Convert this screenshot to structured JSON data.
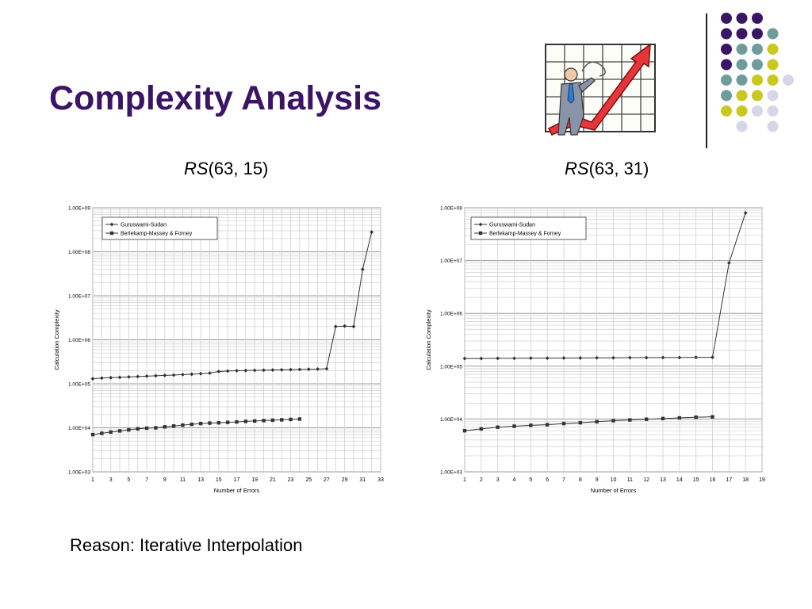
{
  "slide": {
    "title": "Complexity Analysis",
    "footer": "Reason: Iterative Interpolation"
  },
  "colors": {
    "title": "#3b1466",
    "dot_purple": "#3b1466",
    "dot_teal": "#6e9c9c",
    "dot_yellow": "#c8c81e",
    "dot_lavender": "#d6d6e8"
  },
  "decor": {
    "clipart": "businessman-rising-chart-icon"
  },
  "chart_data": [
    {
      "type": "line",
      "label_italic": "RS",
      "label_rest": "(63, 15)",
      "xlabel": "Number of Errors",
      "ylabel": "Calculation Complexity",
      "yscale": "log",
      "ylim": [
        1000,
        1000000000
      ],
      "xlim": [
        1,
        33
      ],
      "xticks": [
        1,
        3,
        5,
        7,
        9,
        11,
        13,
        15,
        17,
        19,
        21,
        23,
        25,
        27,
        29,
        31,
        33
      ],
      "yticks": [
        1000,
        10000,
        100000,
        1000000,
        10000000,
        100000000,
        1000000000
      ],
      "ytick_labels": [
        "1.00E+03",
        "1.00E+04",
        "1.00E+05",
        "1.00E+06",
        "1.00E+07",
        "1.00E+08",
        "1.00E+09"
      ],
      "grid": true,
      "legend_position": "top-left",
      "series": [
        {
          "name": "Guruswami-Sudan",
          "marker": "diamond",
          "x": [
            1,
            2,
            3,
            4,
            5,
            6,
            7,
            8,
            9,
            10,
            11,
            12,
            13,
            14,
            15,
            16,
            17,
            18,
            19,
            20,
            21,
            22,
            23,
            24,
            25,
            26,
            27,
            28,
            29,
            30,
            31,
            32
          ],
          "y": [
            130000,
            135000,
            138000,
            140000,
            143000,
            146000,
            149000,
            152000,
            155000,
            158000,
            162000,
            165000,
            170000,
            175000,
            190000,
            195000,
            198000,
            200000,
            202000,
            204000,
            206000,
            208000,
            210000,
            212000,
            214000,
            216000,
            220000,
            2000000,
            2050000,
            2000000,
            40000000,
            280000000
          ]
        },
        {
          "name": "Berlekamp-Massey & Forney",
          "marker": "square",
          "x": [
            1,
            2,
            3,
            4,
            5,
            6,
            7,
            8,
            9,
            10,
            11,
            12,
            13,
            14,
            15,
            16,
            17,
            18,
            19,
            20,
            21,
            22,
            23,
            24
          ],
          "y": [
            7000,
            7500,
            8000,
            8500,
            9000,
            9500,
            9800,
            10000,
            10500,
            11000,
            11500,
            12000,
            12500,
            12800,
            13000,
            13300,
            13600,
            14000,
            14300,
            14600,
            14900,
            15200,
            15500,
            15800
          ]
        }
      ]
    },
    {
      "type": "line",
      "label_italic": "RS",
      "label_rest": "(63, 31)",
      "xlabel": "Number of Errors",
      "ylabel": "Calculation Complexity",
      "yscale": "log",
      "ylim": [
        1000,
        100000000
      ],
      "xlim": [
        1,
        19
      ],
      "xticks": [
        1,
        2,
        3,
        4,
        5,
        6,
        7,
        8,
        9,
        10,
        11,
        12,
        13,
        14,
        15,
        16,
        17,
        18,
        19
      ],
      "yticks": [
        1000,
        10000,
        100000,
        1000000,
        10000000,
        100000000
      ],
      "ytick_labels": [
        "1.00E+03",
        "1.00E+04",
        "1.00E+05",
        "1.00E+06",
        "1.00E+07",
        "1.00E+08"
      ],
      "grid": true,
      "legend_position": "top-left",
      "series": [
        {
          "name": "Guruswami-Sudan",
          "marker": "diamond",
          "x": [
            1,
            2,
            3,
            4,
            5,
            6,
            7,
            8,
            9,
            10,
            11,
            12,
            13,
            14,
            15,
            16,
            17,
            18
          ],
          "y": [
            140000,
            140000,
            141000,
            141000,
            142000,
            142000,
            143000,
            143000,
            144000,
            144000,
            145000,
            145000,
            146000,
            146000,
            147000,
            147000,
            9000000,
            80000000
          ]
        },
        {
          "name": "Berlekamp-Massey & Forney",
          "marker": "square",
          "x": [
            1,
            2,
            3,
            4,
            5,
            6,
            7,
            8,
            9,
            10,
            11,
            12,
            13,
            14,
            15,
            16
          ],
          "y": [
            6000,
            6500,
            7000,
            7300,
            7600,
            7800,
            8200,
            8500,
            8900,
            9300,
            9600,
            9900,
            10200,
            10500,
            10800,
            11000
          ]
        }
      ]
    }
  ]
}
